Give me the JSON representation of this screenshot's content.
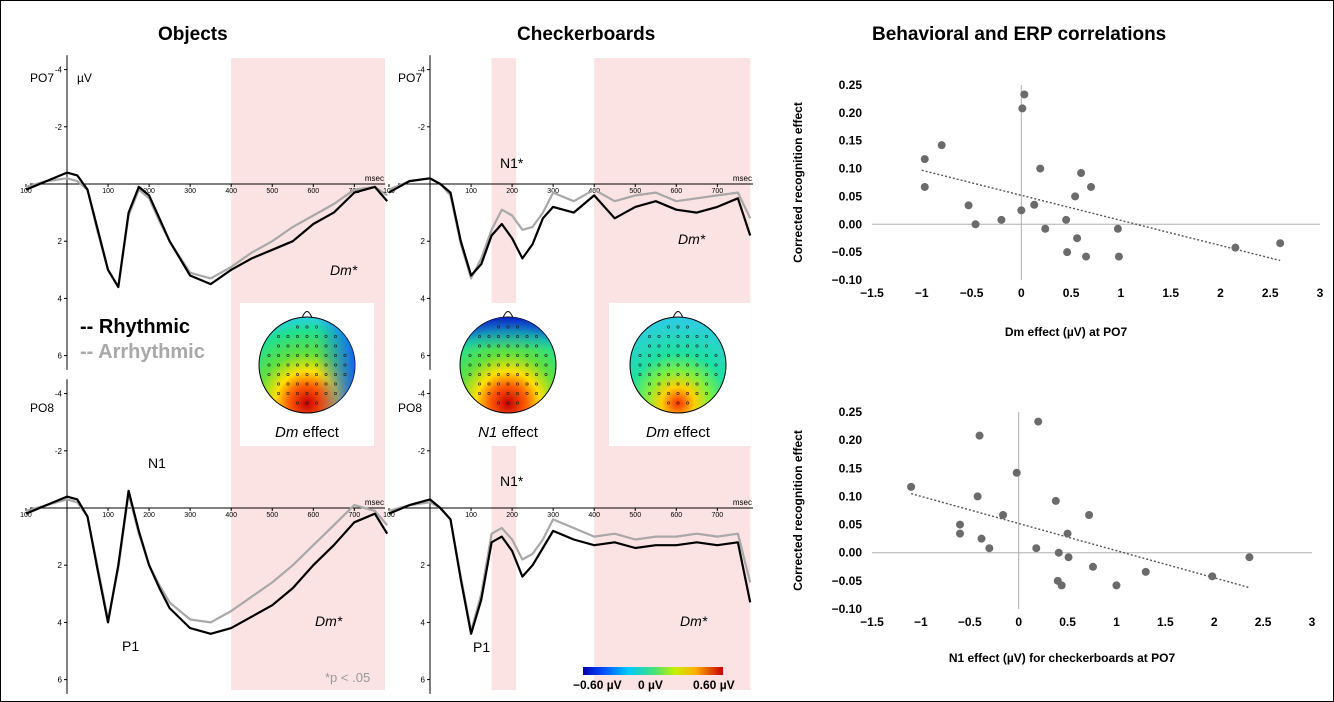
{
  "titles": {
    "objects": "Objects",
    "checkerboards": "Checkerboards",
    "correlations": "Behavioral and ERP correlations"
  },
  "colors": {
    "rhythmic": "#000000",
    "arrhythmic": "#a8a8a8",
    "shade": "#fbe3e3",
    "scatter_point": "#6b6b6b",
    "trendline": "#555555"
  },
  "legend": {
    "rhythmic": "-- Rhythmic",
    "arrhythmic": "-- Arrhythmic"
  },
  "erp": {
    "unit_label": "µV",
    "time_unit": "msec",
    "x_ticks": [
      "100",
      "100",
      "200",
      "300",
      "400",
      "500",
      "600",
      "700"
    ],
    "y_ticks": [
      "-4",
      "-2",
      "2",
      "4",
      "6"
    ],
    "panels": [
      {
        "id": "objects-po7",
        "channel": "PO7",
        "labels": [
          {
            "text": "Dm*",
            "italic": true
          }
        ]
      },
      {
        "id": "objects-po8",
        "channel": "PO8",
        "labels": [
          {
            "text": "N1",
            "italic": false
          },
          {
            "text": "P1",
            "italic": false
          },
          {
            "text": "Dm*",
            "italic": true
          }
        ]
      },
      {
        "id": "checker-po7",
        "channel": "PO7",
        "labels": [
          {
            "text": "N1*",
            "italic": false
          },
          {
            "text": "Dm*",
            "italic": true
          }
        ]
      },
      {
        "id": "checker-po8",
        "channel": "PO8",
        "labels": [
          {
            "text": "N1*",
            "italic": false
          },
          {
            "text": "P1",
            "italic": false
          },
          {
            "text": "Dm*",
            "italic": true
          }
        ]
      }
    ],
    "significance_note": "*p < .05"
  },
  "topomaps": [
    {
      "name": "Dm",
      "suffix": " effect"
    },
    {
      "name": "N1",
      "suffix": " effect"
    },
    {
      "name": "Dm",
      "suffix": " effect"
    }
  ],
  "colorbar": {
    "min_label": "−0.60 µV",
    "mid_label": "0 µV",
    "max_label": "0.60 µV"
  },
  "chart_data": [
    {
      "type": "line",
      "title": "Objects",
      "channel": "PO7",
      "x_label": "msec",
      "y_label": "µV",
      "xlim": [
        -100,
        780
      ],
      "ylim": [
        -4.5,
        6.5
      ],
      "y_inverted": true,
      "shaded_windows_ms": [
        [
          400,
          780
        ]
      ],
      "annotations": [
        "Dm*"
      ],
      "series": [
        {
          "name": "Rhythmic",
          "x": [
            -100,
            -50,
            0,
            25,
            50,
            75,
            100,
            125,
            150,
            175,
            200,
            225,
            250,
            300,
            350,
            400,
            450,
            500,
            550,
            600,
            650,
            700,
            750,
            780
          ],
          "y": [
            0.2,
            -0.1,
            -0.4,
            -0.3,
            0.2,
            1.6,
            3.0,
            3.6,
            1.0,
            0.1,
            0.4,
            1.2,
            2.0,
            3.2,
            3.5,
            3.0,
            2.6,
            2.3,
            2.0,
            1.4,
            1.0,
            0.3,
            0.1,
            0.6
          ]
        },
        {
          "name": "Arrhythmic",
          "x": [
            -100,
            -50,
            0,
            25,
            50,
            75,
            100,
            125,
            150,
            175,
            200,
            225,
            250,
            300,
            350,
            400,
            450,
            500,
            550,
            600,
            650,
            700,
            750,
            780
          ],
          "y": [
            0.1,
            -0.1,
            -0.2,
            -0.1,
            0.2,
            1.7,
            3.0,
            3.6,
            1.1,
            0.2,
            0.5,
            1.3,
            2.0,
            3.1,
            3.3,
            2.9,
            2.4,
            2.0,
            1.5,
            1.1,
            0.7,
            0.2,
            0.1,
            0.4
          ]
        }
      ]
    },
    {
      "type": "line",
      "title": "Objects",
      "channel": "PO8",
      "x_label": "msec",
      "y_label": "µV",
      "xlim": [
        -100,
        780
      ],
      "ylim": [
        -4.5,
        6.5
      ],
      "y_inverted": true,
      "shaded_windows_ms": [
        [
          400,
          780
        ]
      ],
      "annotations": [
        "N1",
        "P1",
        "Dm*"
      ],
      "series": [
        {
          "name": "Rhythmic",
          "x": [
            -100,
            -50,
            0,
            25,
            50,
            75,
            100,
            125,
            150,
            175,
            200,
            225,
            250,
            300,
            350,
            400,
            450,
            500,
            550,
            600,
            650,
            700,
            750,
            780
          ],
          "y": [
            0.2,
            -0.1,
            -0.4,
            -0.3,
            0.3,
            2.2,
            4.0,
            2.0,
            -0.6,
            0.8,
            2.0,
            2.8,
            3.5,
            4.2,
            4.4,
            4.2,
            3.8,
            3.4,
            2.8,
            2.0,
            1.3,
            0.5,
            0.2,
            0.9
          ]
        },
        {
          "name": "Arrhythmic",
          "x": [
            -100,
            -50,
            0,
            25,
            50,
            75,
            100,
            125,
            150,
            175,
            200,
            225,
            250,
            300,
            350,
            400,
            450,
            500,
            550,
            600,
            650,
            700,
            750,
            780
          ],
          "y": [
            0.1,
            -0.1,
            -0.3,
            -0.2,
            0.3,
            2.1,
            3.9,
            2.1,
            -0.5,
            0.9,
            2.0,
            2.7,
            3.3,
            3.9,
            4.0,
            3.6,
            3.1,
            2.6,
            2.0,
            1.3,
            0.6,
            -0.1,
            0.1,
            0.6
          ]
        }
      ]
    },
    {
      "type": "line",
      "title": "Checkerboards",
      "channel": "PO7",
      "x_label": "msec",
      "y_label": "µV",
      "xlim": [
        -100,
        780
      ],
      "ylim": [
        -4.5,
        6.5
      ],
      "y_inverted": true,
      "shaded_windows_ms": [
        [
          150,
          210
        ],
        [
          400,
          780
        ]
      ],
      "annotations": [
        "N1*",
        "Dm*"
      ],
      "series": [
        {
          "name": "Rhythmic",
          "x": [
            -100,
            -50,
            0,
            25,
            50,
            75,
            100,
            125,
            150,
            175,
            200,
            225,
            250,
            275,
            300,
            350,
            400,
            450,
            500,
            550,
            600,
            650,
            700,
            750,
            780
          ],
          "y": [
            0.3,
            -0.1,
            -0.2,
            0.0,
            0.3,
            2.0,
            3.2,
            2.8,
            1.8,
            1.4,
            1.9,
            2.6,
            2.1,
            1.2,
            0.8,
            1.0,
            0.4,
            1.2,
            0.8,
            0.6,
            0.9,
            1.0,
            0.8,
            0.5,
            1.8
          ]
        },
        {
          "name": "Arrhythmic",
          "x": [
            -100,
            -50,
            0,
            25,
            50,
            75,
            100,
            125,
            150,
            175,
            200,
            225,
            250,
            275,
            300,
            350,
            400,
            450,
            500,
            550,
            600,
            650,
            700,
            750,
            780
          ],
          "y": [
            0.2,
            -0.1,
            -0.2,
            0.0,
            0.4,
            2.1,
            3.3,
            2.6,
            1.6,
            0.9,
            1.1,
            1.6,
            1.5,
            1.0,
            0.3,
            0.6,
            0.2,
            0.6,
            0.4,
            0.3,
            0.6,
            0.5,
            0.4,
            0.3,
            1.2
          ]
        }
      ]
    },
    {
      "type": "line",
      "title": "Checkerboards",
      "channel": "PO8",
      "x_label": "msec",
      "y_label": "µV",
      "xlim": [
        -100,
        780
      ],
      "ylim": [
        -4.5,
        6.5
      ],
      "y_inverted": true,
      "shaded_windows_ms": [
        [
          150,
          210
        ],
        [
          400,
          780
        ]
      ],
      "annotations": [
        "N1*",
        "P1",
        "Dm*"
      ],
      "series": [
        {
          "name": "Rhythmic",
          "x": [
            -100,
            -50,
            0,
            25,
            50,
            75,
            100,
            125,
            150,
            175,
            200,
            225,
            250,
            275,
            300,
            350,
            400,
            450,
            500,
            550,
            600,
            650,
            700,
            750,
            780
          ],
          "y": [
            0.2,
            -0.1,
            -0.3,
            0.0,
            0.4,
            2.5,
            4.4,
            3.2,
            1.2,
            1.0,
            1.5,
            2.4,
            2.0,
            1.4,
            0.8,
            1.1,
            1.3,
            1.2,
            1.4,
            1.3,
            1.3,
            1.2,
            1.3,
            1.2,
            3.3
          ]
        },
        {
          "name": "Arrhythmic",
          "x": [
            -100,
            -50,
            0,
            25,
            50,
            75,
            100,
            125,
            150,
            175,
            200,
            225,
            250,
            275,
            300,
            350,
            400,
            450,
            500,
            550,
            600,
            650,
            700,
            750,
            780
          ],
          "y": [
            0.1,
            -0.1,
            -0.2,
            0.0,
            0.4,
            2.4,
            4.3,
            3.0,
            0.9,
            0.7,
            1.1,
            1.8,
            1.6,
            1.1,
            0.4,
            0.7,
            1.0,
            0.9,
            1.1,
            1.0,
            1.0,
            0.9,
            1.0,
            0.9,
            2.6
          ]
        }
      ]
    },
    {
      "type": "scatter",
      "title": "",
      "xlabel": "Dm effect (µV) at PO7",
      "ylabel": "Corrected recognition effect",
      "xlim": [
        -1.5,
        3
      ],
      "ylim": [
        -0.1,
        0.25
      ],
      "x_ticks": [
        -1.5,
        -1,
        -0.5,
        0,
        0.5,
        1,
        1.5,
        2,
        2.5,
        3
      ],
      "y_ticks": [
        -0.1,
        -0.05,
        0,
        0.05,
        0.1,
        0.15,
        0.2,
        0.25
      ],
      "x_tick_labels": [
        "−1.5",
        "−1",
        "−0.5",
        "0",
        "0.5",
        "1",
        "1.5",
        "2",
        "2.5",
        "3"
      ],
      "y_tick_labels": [
        "−0.10",
        "−0.05",
        "0.00",
        "0.05",
        "0.10",
        "0.15",
        "0.20",
        "0.25"
      ],
      "points": [
        [
          -0.97,
          0.117
        ],
        [
          -0.8,
          0.142
        ],
        [
          -0.97,
          0.067
        ],
        [
          -0.53,
          0.034
        ],
        [
          -0.46,
          0.0
        ],
        [
          -0.2,
          0.008
        ],
        [
          0.01,
          0.208
        ],
        [
          0.03,
          0.233
        ],
        [
          0.0,
          0.025
        ],
        [
          0.13,
          0.035
        ],
        [
          0.19,
          0.1
        ],
        [
          0.24,
          -0.008
        ],
        [
          0.45,
          0.008
        ],
        [
          0.46,
          -0.05
        ],
        [
          0.54,
          0.05
        ],
        [
          0.56,
          -0.025
        ],
        [
          0.6,
          0.092
        ],
        [
          0.65,
          -0.058
        ],
        [
          0.7,
          0.067
        ],
        [
          0.97,
          -0.008
        ],
        [
          0.98,
          -0.058
        ],
        [
          2.15,
          -0.042
        ],
        [
          2.6,
          -0.034
        ]
      ],
      "trendline": {
        "x": [
          -1.0,
          2.6
        ],
        "y": [
          0.097,
          -0.065
        ]
      }
    },
    {
      "type": "scatter",
      "title": "",
      "xlabel": "N1 effect (µV) for checkerboards at PO7",
      "ylabel": "Corrected recognition effect",
      "xlim": [
        -1.5,
        3
      ],
      "ylim": [
        -0.1,
        0.25
      ],
      "x_ticks": [
        -1.5,
        -1,
        -0.5,
        0,
        0.5,
        1,
        1.5,
        2,
        2.5,
        3
      ],
      "y_ticks": [
        -0.1,
        -0.05,
        0,
        0.05,
        0.1,
        0.15,
        0.2,
        0.25
      ],
      "x_tick_labels": [
        "−1.5",
        "−1",
        "−0.5",
        "0",
        "0.5",
        "1",
        "1.5",
        "2",
        "2.5",
        "3"
      ],
      "y_tick_labels": [
        "−0.10",
        "−0.05",
        "0.00",
        "0.05",
        "0.10",
        "0.15",
        "0.20",
        "0.25"
      ],
      "points": [
        [
          -1.1,
          0.117
        ],
        [
          -0.6,
          0.05
        ],
        [
          -0.6,
          0.034
        ],
        [
          -0.42,
          0.1
        ],
        [
          -0.38,
          0.025
        ],
        [
          -0.4,
          0.208
        ],
        [
          -0.3,
          0.008
        ],
        [
          -0.16,
          0.067
        ],
        [
          -0.02,
          0.142
        ],
        [
          0.2,
          0.233
        ],
        [
          0.18,
          0.008
        ],
        [
          0.38,
          0.092
        ],
        [
          0.41,
          0.0
        ],
        [
          0.4,
          -0.05
        ],
        [
          0.44,
          -0.058
        ],
        [
          0.5,
          0.034
        ],
        [
          0.51,
          -0.008
        ],
        [
          0.72,
          0.067
        ],
        [
          0.76,
          -0.025
        ],
        [
          1.0,
          -0.058
        ],
        [
          1.3,
          -0.034
        ],
        [
          1.98,
          -0.042
        ],
        [
          2.36,
          -0.008
        ]
      ],
      "trendline": {
        "x": [
          -1.1,
          2.36
        ],
        "y": [
          0.105,
          -0.062
        ]
      }
    }
  ]
}
